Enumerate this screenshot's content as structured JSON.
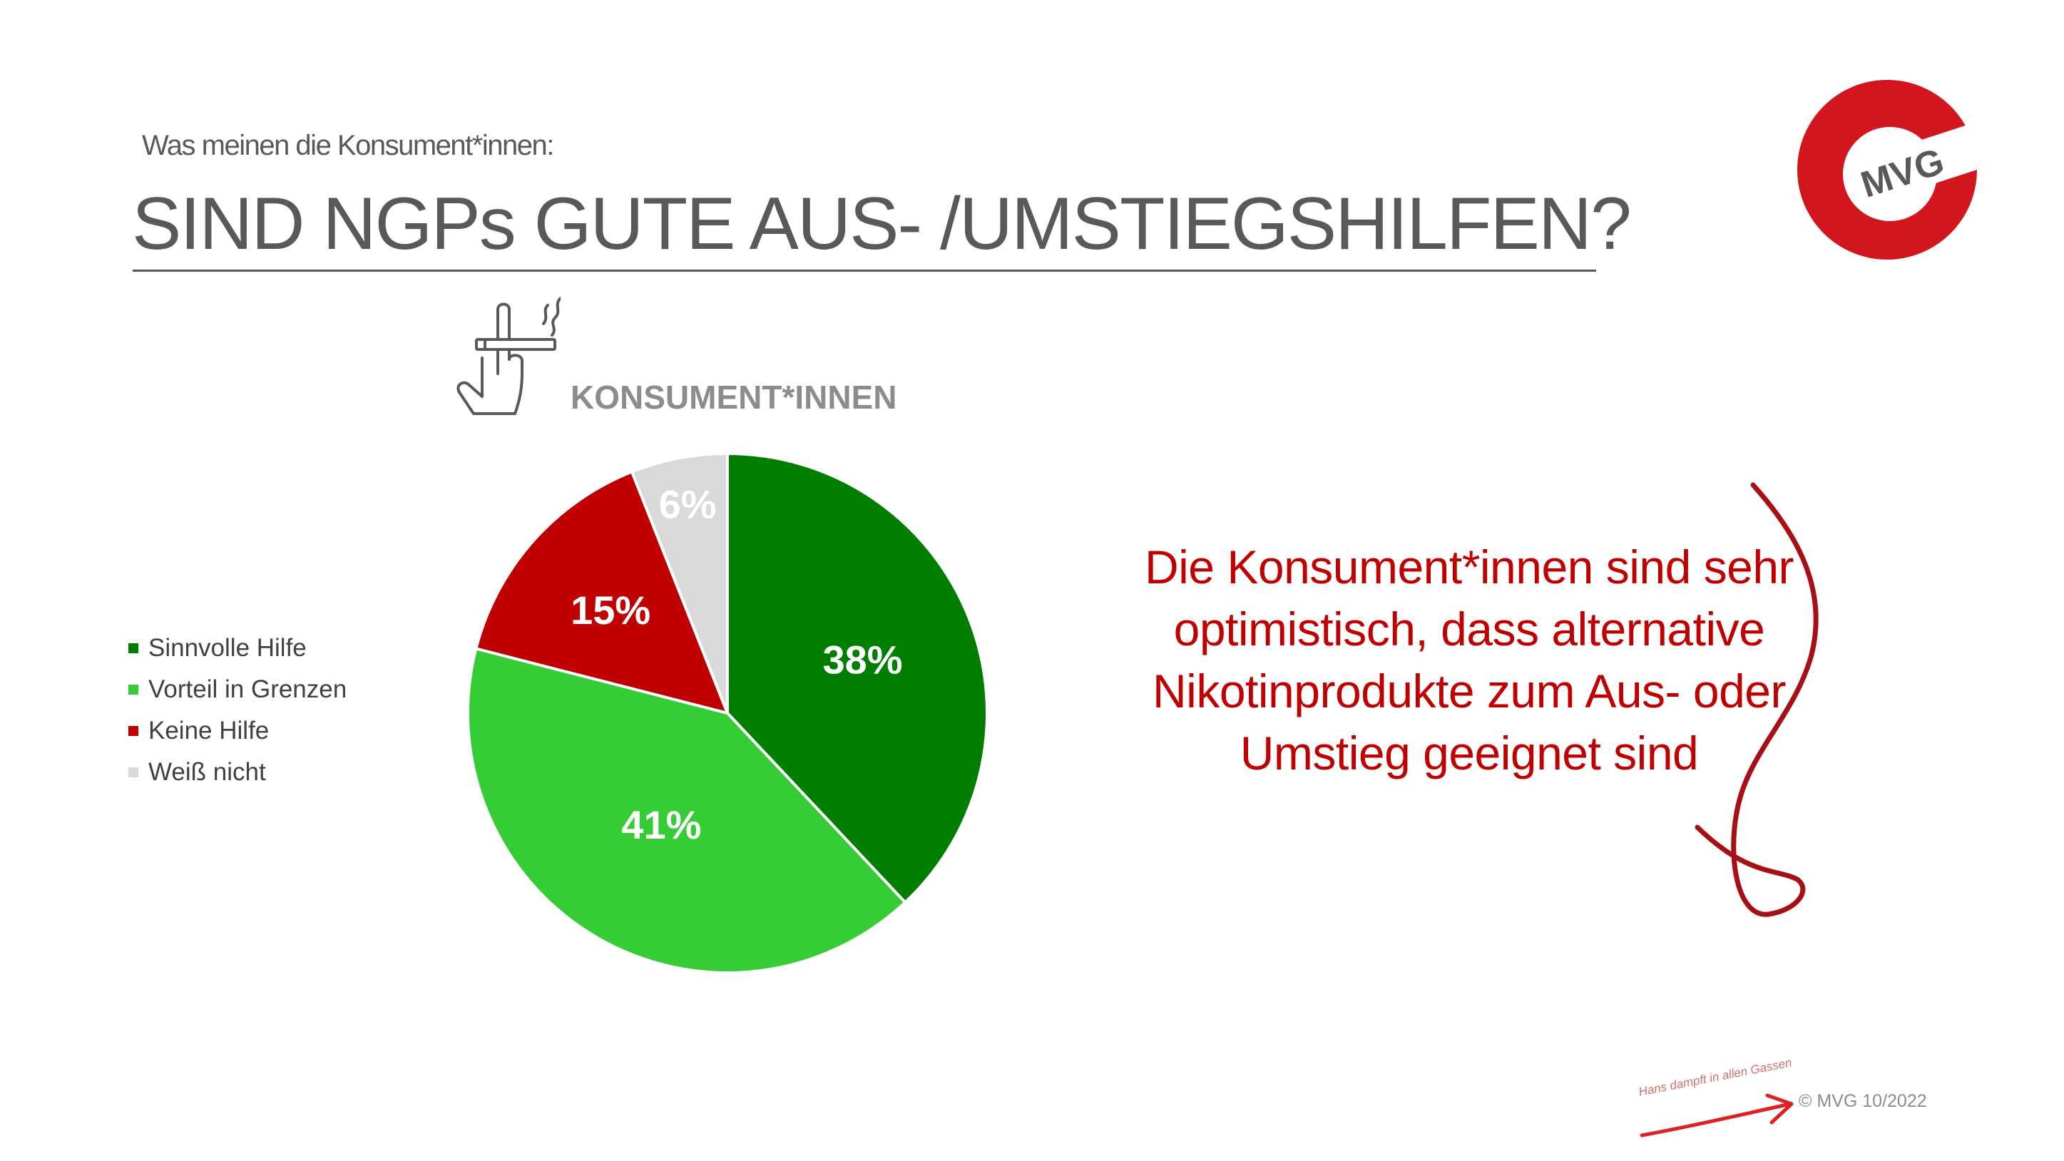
{
  "header": {
    "kicker": "Was meinen die Konsument*innen:",
    "title": "SIND NGPs GUTE AUS- /UMSTIEGSHILFEN?"
  },
  "logo": {
    "text": "MVG",
    "color": "#d2161e"
  },
  "chart_heading": "KONSUMENT*INNEN",
  "chart_data": {
    "type": "pie",
    "categories": [
      "Sinnvolle Hilfe",
      "Vorteil in Grenzen",
      "Keine Hilfe",
      "Weiß nicht"
    ],
    "values": [
      38,
      41,
      15,
      6
    ],
    "labels": [
      "38%",
      "41%",
      "15%",
      "6%"
    ],
    "colors": [
      "#007e00",
      "#36cc36",
      "#c00000",
      "#d9d9d9"
    ],
    "start_angle_deg": 0,
    "direction": "clockwise",
    "legend_position": "left",
    "title": "KONSUMENT*INNEN"
  },
  "legend": {
    "items": [
      {
        "label": "Sinnvolle Hilfe",
        "color": "#007e00"
      },
      {
        "label": "Vorteil in Grenzen",
        "color": "#36cc36"
      },
      {
        "label": "Keine Hilfe",
        "color": "#c00000"
      },
      {
        "label": "Weiß nicht",
        "color": "#d9d9d9"
      }
    ]
  },
  "callout": {
    "text": "Die Konsument*innen sind sehr optimistisch, dass alternative Nikotinprodukte zum Aus- oder Umstieg geeignet sind",
    "color": "#c00000"
  },
  "footer": {
    "script_text": "Hans dampft in allen Gassen",
    "copyright": "© MVG 10/2022"
  },
  "icons": {
    "hand": "hand-with-cigarette-icon",
    "swirl": "swirl-arrow-icon",
    "footer_arrow": "red-arrow-icon",
    "logo": "mvg-logo"
  }
}
